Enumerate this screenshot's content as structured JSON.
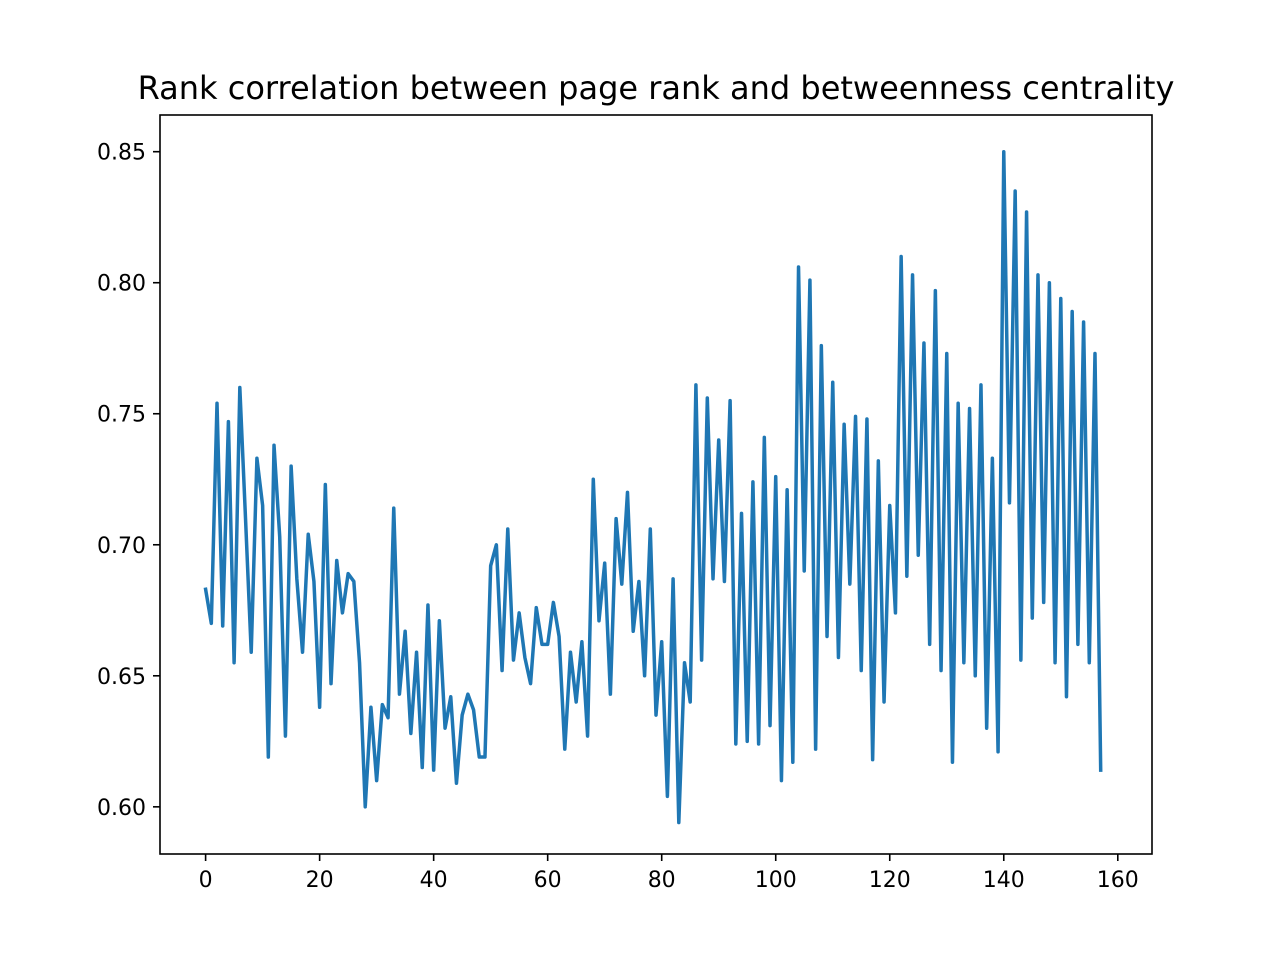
{
  "chart_data": {
    "type": "line",
    "title": "Rank correlation between page rank and betweenness centrality",
    "xlabel": "",
    "ylabel": "",
    "xlim": [
      -8,
      166
    ],
    "ylim": [
      0.582,
      0.864
    ],
    "xticks": [
      0,
      20,
      40,
      60,
      80,
      100,
      120,
      140,
      160
    ],
    "xtick_labels": [
      "0",
      "20",
      "40",
      "60",
      "80",
      "100",
      "120",
      "140",
      "160"
    ],
    "yticks": [
      0.6,
      0.65,
      0.7,
      0.75,
      0.8,
      0.85
    ],
    "ytick_labels": [
      "0.60",
      "0.65",
      "0.70",
      "0.75",
      "0.80",
      "0.85"
    ],
    "grid": false,
    "legend": "none",
    "color": "#1f77b4",
    "series": [
      {
        "x_start": 0,
        "x_step": 1,
        "values": [
          0.683,
          0.67,
          0.754,
          0.669,
          0.747,
          0.655,
          0.76,
          0.71,
          0.659,
          0.733,
          0.715,
          0.619,
          0.738,
          0.703,
          0.627,
          0.73,
          0.687,
          0.659,
          0.704,
          0.686,
          0.638,
          0.723,
          0.647,
          0.694,
          0.674,
          0.689,
          0.686,
          0.655,
          0.6,
          0.638,
          0.61,
          0.639,
          0.634,
          0.714,
          0.643,
          0.667,
          0.628,
          0.659,
          0.615,
          0.677,
          0.614,
          0.671,
          0.63,
          0.642,
          0.609,
          0.635,
          0.643,
          0.637,
          0.619,
          0.619,
          0.692,
          0.7,
          0.652,
          0.706,
          0.656,
          0.674,
          0.657,
          0.647,
          0.676,
          0.662,
          0.662,
          0.678,
          0.665,
          0.622,
          0.659,
          0.64,
          0.663,
          0.627,
          0.725,
          0.671,
          0.693,
          0.643,
          0.71,
          0.685,
          0.72,
          0.667,
          0.686,
          0.65,
          0.706,
          0.635,
          0.663,
          0.604,
          0.687,
          0.594,
          0.655,
          0.64,
          0.761,
          0.656,
          0.756,
          0.687,
          0.74,
          0.686,
          0.755,
          0.624,
          0.712,
          0.625,
          0.724,
          0.624,
          0.741,
          0.631,
          0.726,
          0.61,
          0.721,
          0.617,
          0.806,
          0.69,
          0.801,
          0.622,
          0.776,
          0.665,
          0.762,
          0.657,
          0.746,
          0.685,
          0.749,
          0.652,
          0.748,
          0.618,
          0.732,
          0.64,
          0.715,
          0.674,
          0.81,
          0.688,
          0.803,
          0.696,
          0.777,
          0.662,
          0.797,
          0.652,
          0.773,
          0.617,
          0.754,
          0.655,
          0.752,
          0.65,
          0.761,
          0.63,
          0.733,
          0.621,
          0.85,
          0.716,
          0.835,
          0.656,
          0.827,
          0.672,
          0.803,
          0.678,
          0.8,
          0.655,
          0.794,
          0.642,
          0.789,
          0.662,
          0.785,
          0.655,
          0.773,
          0.614
        ]
      }
    ]
  }
}
